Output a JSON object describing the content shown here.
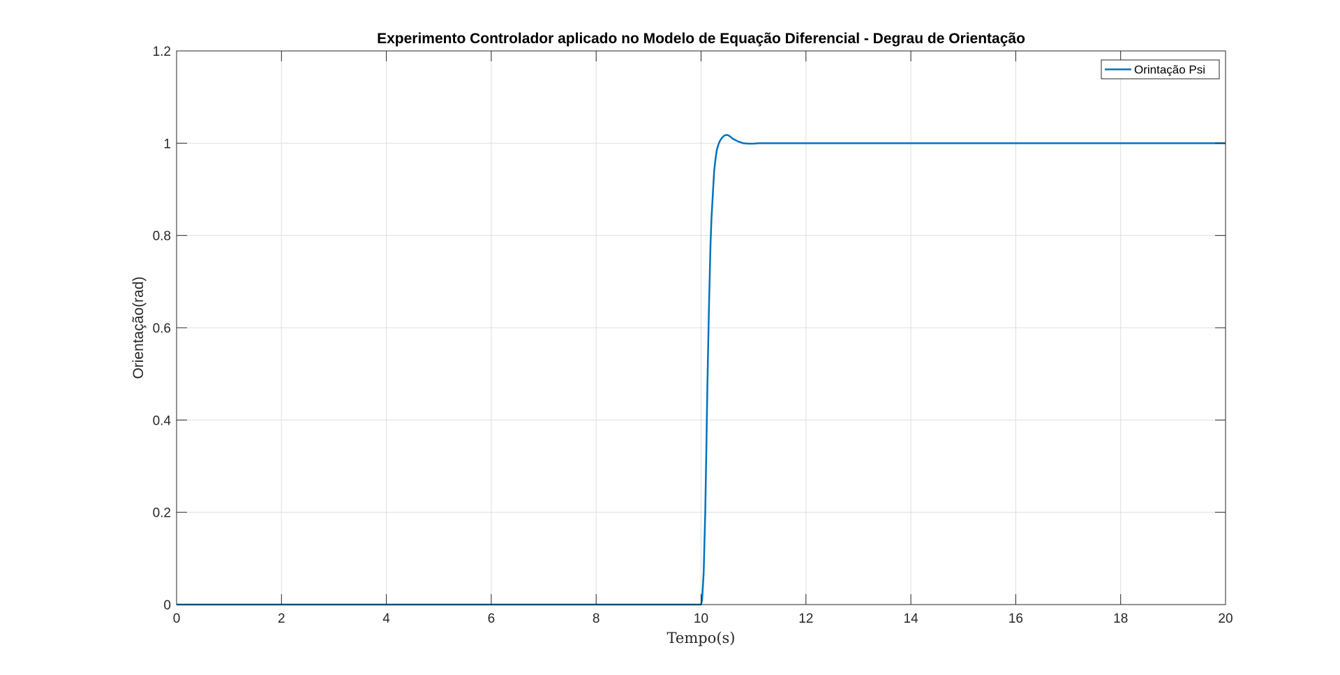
{
  "chart_data": {
    "type": "line",
    "title": "Experimento Controlador aplicado no Modelo de Equação Diferencial - Degrau de Orientação",
    "xlabel": "Tempo(s)",
    "ylabel": "Orientação(rad)",
    "xlim": [
      0,
      20
    ],
    "ylim": [
      0,
      1.2
    ],
    "xticks": [
      0,
      2,
      4,
      6,
      8,
      10,
      12,
      14,
      16,
      18,
      20
    ],
    "yticks": [
      0,
      0.2,
      0.4,
      0.6,
      0.8,
      1,
      1.2
    ],
    "xtick_labels": [
      "0",
      "2",
      "4",
      "6",
      "8",
      "10",
      "12",
      "14",
      "16",
      "18",
      "20"
    ],
    "ytick_labels": [
      "0",
      "0.2",
      "0.4",
      "0.6",
      "0.8",
      "1",
      "1.2"
    ],
    "grid": true,
    "legend_position": "top-right",
    "series": [
      {
        "name": "Orintação Psi",
        "color": "#0072BD",
        "x": [
          0,
          10.0,
          10.02,
          10.05,
          10.08,
          10.1,
          10.12,
          10.15,
          10.18,
          10.2,
          10.23,
          10.25,
          10.28,
          10.3,
          10.33,
          10.36,
          10.4,
          10.45,
          10.5,
          10.55,
          10.6,
          10.7,
          10.8,
          10.9,
          11.0,
          11.1,
          11.2,
          12,
          14,
          16,
          18,
          20
        ],
        "y": [
          0,
          0,
          0.01,
          0.07,
          0.2,
          0.33,
          0.47,
          0.64,
          0.78,
          0.84,
          0.9,
          0.94,
          0.97,
          0.985,
          0.997,
          1.005,
          1.012,
          1.017,
          1.018,
          1.015,
          1.01,
          1.004,
          1.0,
          0.999,
          0.999,
          1.0,
          1.0,
          1.0,
          1.0,
          1.0,
          1.0,
          1.0
        ]
      }
    ]
  }
}
